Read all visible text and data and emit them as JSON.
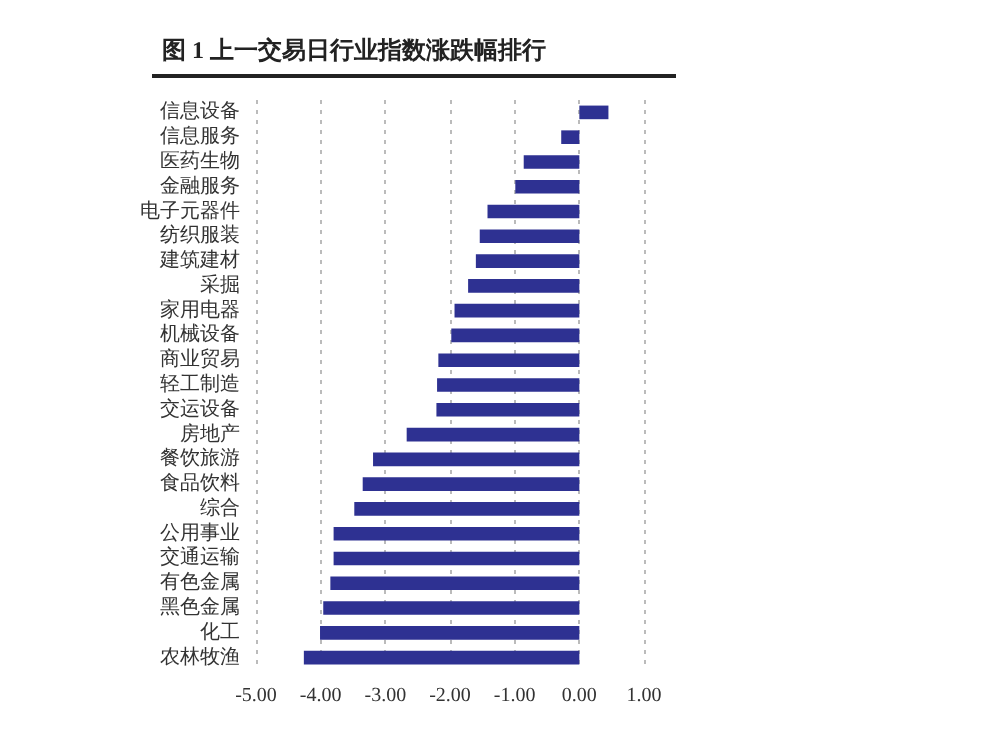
{
  "chart_data": {
    "type": "bar",
    "orientation": "horizontal",
    "title": "图 1 上一交易日行业指数涨跌幅排行",
    "categories": [
      "信息设备",
      "信息服务",
      "医药生物",
      "金融服务",
      "电子元器件",
      "纺织服装",
      "建筑建材",
      "采掘",
      "家用电器",
      "机械设备",
      "商业贸易",
      "轻工制造",
      "交运设备",
      "房地产",
      "餐饮旅游",
      "食品饮料",
      "综合",
      "公用事业",
      "交通运输",
      "有色金属",
      "黑色金属",
      "化工",
      "农林牧渔"
    ],
    "values": [
      0.45,
      -0.28,
      -0.86,
      -0.99,
      -1.42,
      -1.54,
      -1.6,
      -1.72,
      -1.93,
      -1.98,
      -2.18,
      -2.2,
      -2.21,
      -2.67,
      -3.19,
      -3.35,
      -3.48,
      -3.8,
      -3.8,
      -3.85,
      -3.96,
      -4.01,
      -4.26
    ],
    "color": "#2e3192",
    "xlim": [
      -5,
      1
    ],
    "xticks": [
      {
        "value": -5,
        "label": "-5.00"
      },
      {
        "value": -4,
        "label": "-4.00"
      },
      {
        "value": -3,
        "label": "-3.00"
      },
      {
        "value": -2,
        "label": "-2.00"
      },
      {
        "value": -1,
        "label": "-1.00"
      },
      {
        "value": 0,
        "label": "0.00"
      },
      {
        "value": 1,
        "label": "1.00"
      }
    ],
    "grid": "x"
  }
}
